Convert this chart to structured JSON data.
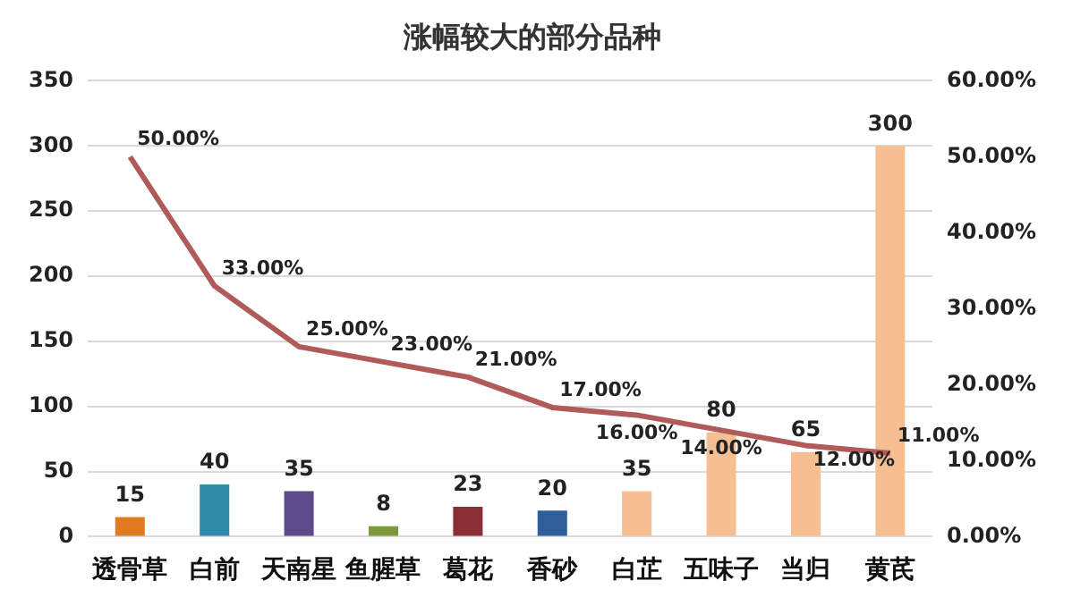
{
  "chart_data": {
    "type": "bar",
    "title": "涨幅较大的部分品种",
    "categories": [
      "透骨草",
      "白前",
      "天南星",
      "鱼腥草",
      "葛花",
      "香砂",
      "白芷",
      "五味子",
      "当归",
      "黄芪"
    ],
    "series": [
      {
        "type": "bar",
        "colors": [
          "#e07b20",
          "#2e8aa6",
          "#5b4b8a",
          "#7a9a3c",
          "#8b2f36",
          "#2f5f9a",
          "#f5bf91",
          "#f5bf91",
          "#f5bf91",
          "#f5bf91"
        ],
        "values": [
          15,
          40,
          35,
          8,
          23,
          20,
          35,
          80,
          65,
          300
        ],
        "data_labels": true
      },
      {
        "type": "line",
        "axis": "y2",
        "color": "#b05a5a",
        "values": [
          50,
          33,
          25,
          23,
          21,
          17,
          16,
          14,
          12,
          11
        ],
        "value_labels": [
          "50.00%",
          "33.00%",
          "25.00%",
          "23.00%",
          "21.00%",
          "17.00%",
          "16.00%",
          "14.00%",
          "12.00%",
          "11.00%"
        ],
        "marker": "none"
      }
    ],
    "ylim": [
      0,
      350
    ],
    "yticks": [
      0,
      50,
      100,
      150,
      200,
      250,
      300,
      350
    ],
    "y2lim": [
      0,
      60
    ],
    "y2ticks": [
      {
        "value": 0,
        "label": "0.00%"
      },
      {
        "value": 10,
        "label": "10.00%"
      },
      {
        "value": 20,
        "label": "20.00%"
      },
      {
        "value": 30,
        "label": "30.00%"
      },
      {
        "value": 40,
        "label": "40.00%"
      },
      {
        "value": 50,
        "label": "50.00%"
      },
      {
        "value": 60,
        "label": "60.00%"
      }
    ],
    "grid": "y",
    "legend": false
  }
}
